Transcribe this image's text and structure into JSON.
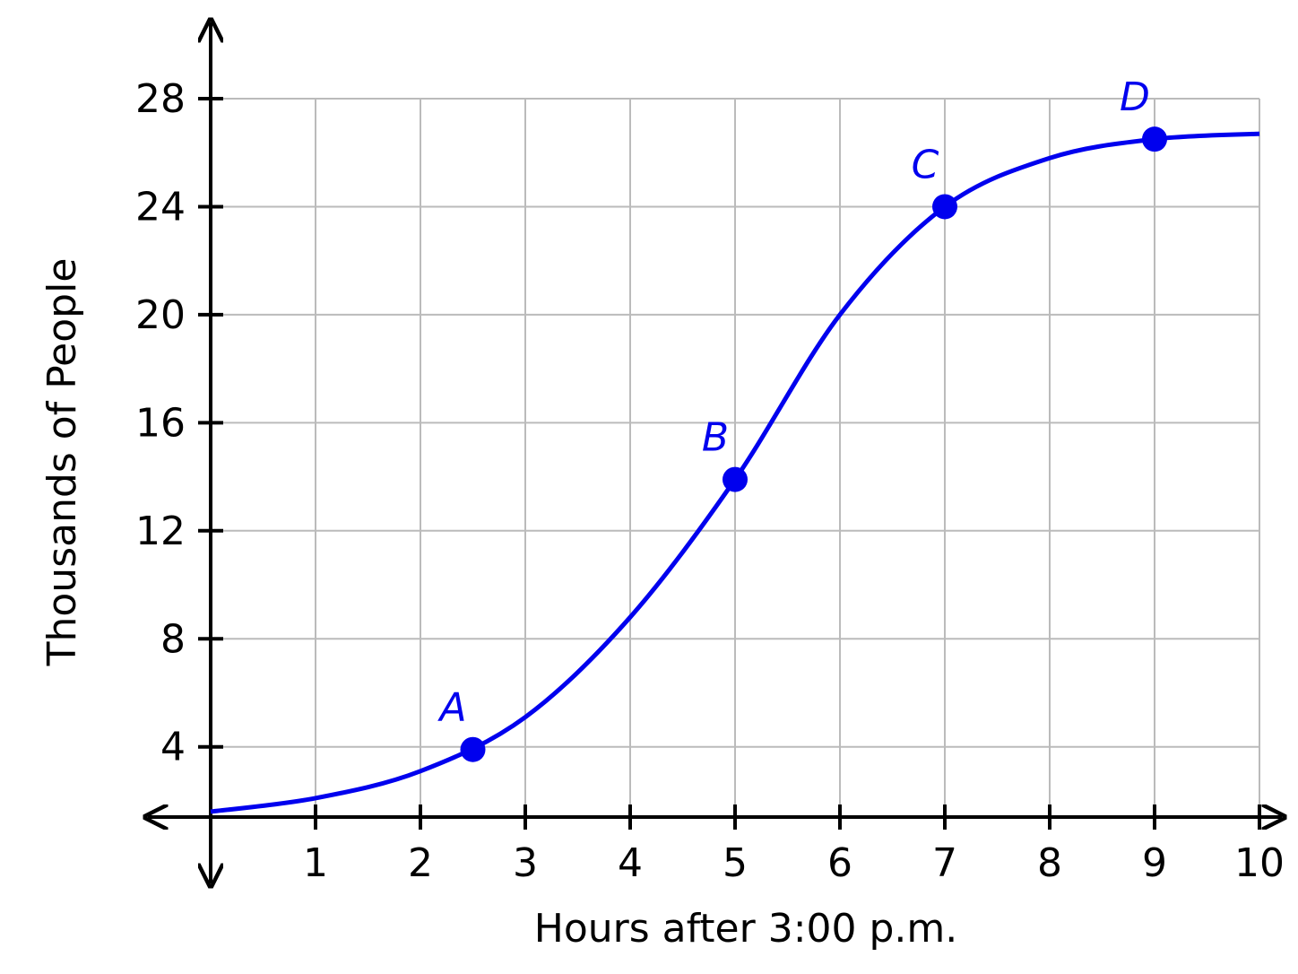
{
  "chart_data": {
    "type": "line",
    "x_label": "Hours after 3:00 p.m.",
    "y_label": "Thousands of People",
    "xlim": [
      0,
      10
    ],
    "ylim": [
      1.4,
      28
    ],
    "xticks": [
      1,
      2,
      3,
      4,
      5,
      6,
      7,
      8,
      9,
      10
    ],
    "yticks": [
      4,
      8,
      12,
      16,
      20,
      24,
      28
    ],
    "grid": true,
    "color": "#0000ee",
    "x": [
      0,
      1,
      2,
      3,
      4,
      5,
      6,
      7,
      8,
      9,
      10
    ],
    "values": [
      1.6,
      2.1,
      3.1,
      5.1,
      8.8,
      13.9,
      20.0,
      24.0,
      25.8,
      26.5,
      26.7
    ],
    "points": [
      {
        "label": "A",
        "x": 2.5,
        "y": 3.9
      },
      {
        "label": "B",
        "x": 5,
        "y": 13.9
      },
      {
        "label": "C",
        "x": 7,
        "y": 24
      },
      {
        "label": "D",
        "x": 9,
        "y": 26.5
      }
    ]
  }
}
